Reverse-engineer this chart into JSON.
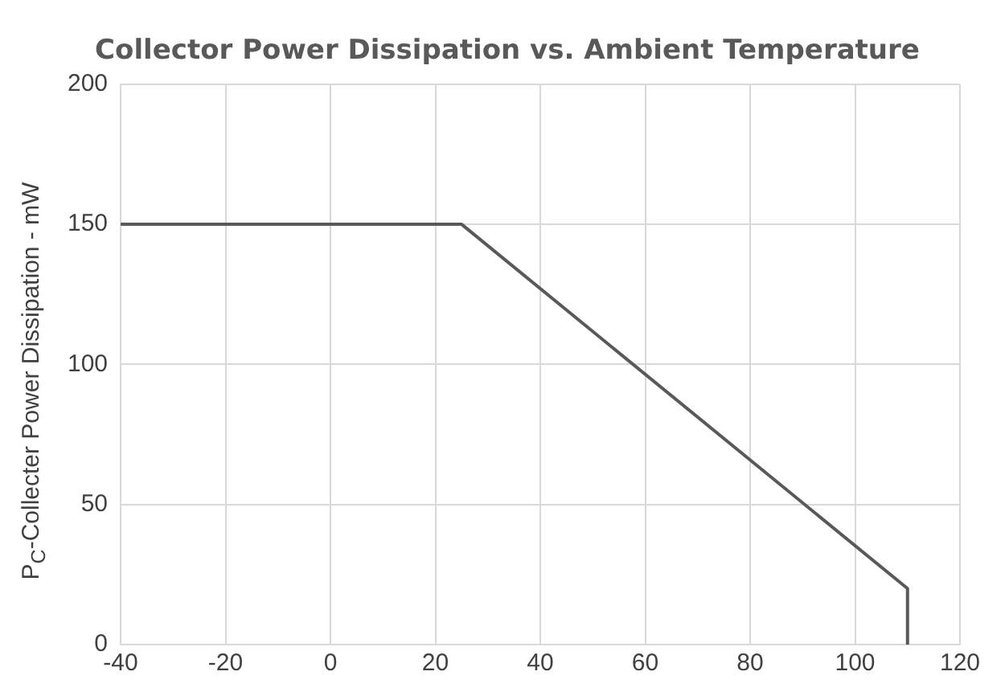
{
  "chart_data": {
    "type": "line",
    "title": "Collector Power Dissipation vs. Ambient Temperature",
    "ylabel": "P$_{C}$-Collecter Power Dissipation - mW",
    "x": [
      -40,
      25,
      110,
      110
    ],
    "series": [
      {
        "color": "#595959",
        "values": [
          150,
          150,
          20,
          0
        ]
      }
    ],
    "xlim": [
      -40,
      120
    ],
    "xticks": [
      -40,
      -20,
      0,
      20,
      40,
      60,
      80,
      100,
      120
    ],
    "ylim": [
      0,
      200
    ],
    "yticks": [
      0,
      50,
      100,
      150,
      200
    ],
    "grid": true,
    "legend": false,
    "marker": "none",
    "line_style": "solid"
  }
}
